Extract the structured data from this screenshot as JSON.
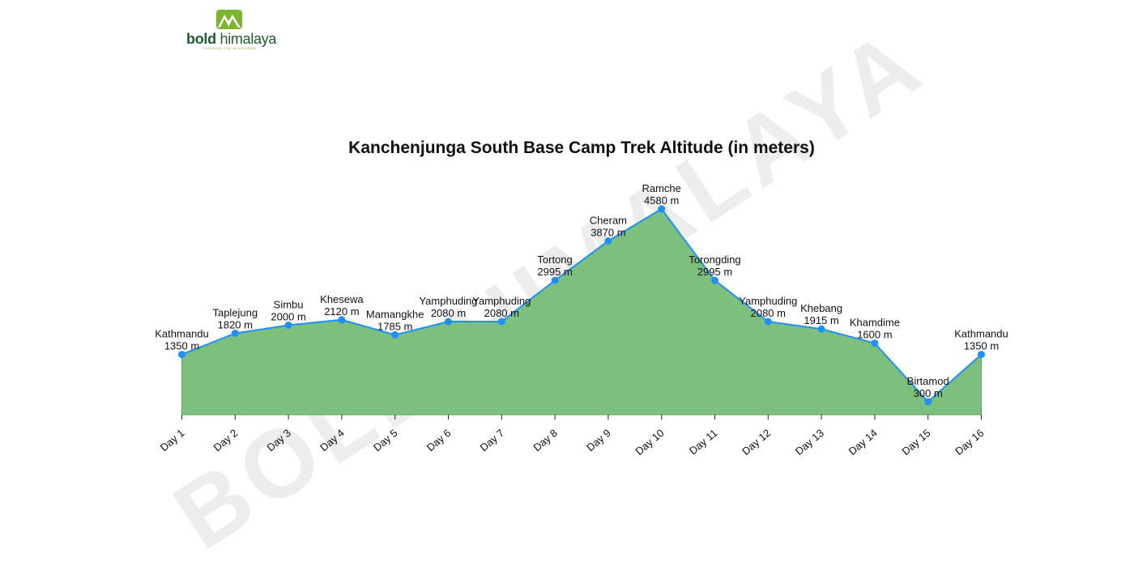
{
  "logo": {
    "brand_bold": "bold",
    "brand_rest": "himalaya",
    "tagline": "THROUGH THE MOUNTAINS",
    "icon": "mountain-logo-icon",
    "color_primary": "#1e5b2e",
    "color_accent": "#7bb52b"
  },
  "watermark": "BOLD HIMALAYA",
  "chart_data": {
    "type": "area",
    "title": "Kanchenjunga South Base Camp Trek Altitude (in meters)",
    "xlabel": "",
    "ylabel": "",
    "categories": [
      "Day 1",
      "Day 2",
      "Day 3",
      "Day 4",
      "Day 5",
      "Day 6",
      "Day 7",
      "Day 8",
      "Day 9",
      "Day 10",
      "Day 11",
      "Day 12",
      "Day 13",
      "Day 14",
      "Day 15",
      "Day 16"
    ],
    "places": [
      "Kathmandu",
      "Taplejung",
      "Simbu",
      "Khesewa",
      "Mamangkhe",
      "Yamphuding",
      "Yamphuding",
      "Tortong",
      "Cheram",
      "Ramche",
      "Torongding",
      "Yamphuding",
      "Khebang",
      "Khamdime",
      "Birtamod",
      "Kathmandu"
    ],
    "values": [
      1350,
      1820,
      2000,
      2120,
      1785,
      2080,
      2080,
      2995,
      3870,
      4580,
      2995,
      2080,
      1915,
      1600,
      300,
      1350
    ],
    "value_labels": [
      "1350 m",
      "1820 m",
      "2000 m",
      "2120 m",
      "1785 m",
      "2080 m",
      "2080 m",
      "2995 m",
      "3870 m",
      "4580 m",
      "2995 m",
      "2080 m",
      "1915 m",
      "1600 m",
      "300 m",
      "1350 m"
    ],
    "ylim": [
      0,
      4580
    ],
    "grid": false,
    "fill_color": "#7dbf7d",
    "fill_edge_color": "#5fa55f",
    "line_color": "#1e90ff",
    "marker_color": "#1e90ff"
  }
}
